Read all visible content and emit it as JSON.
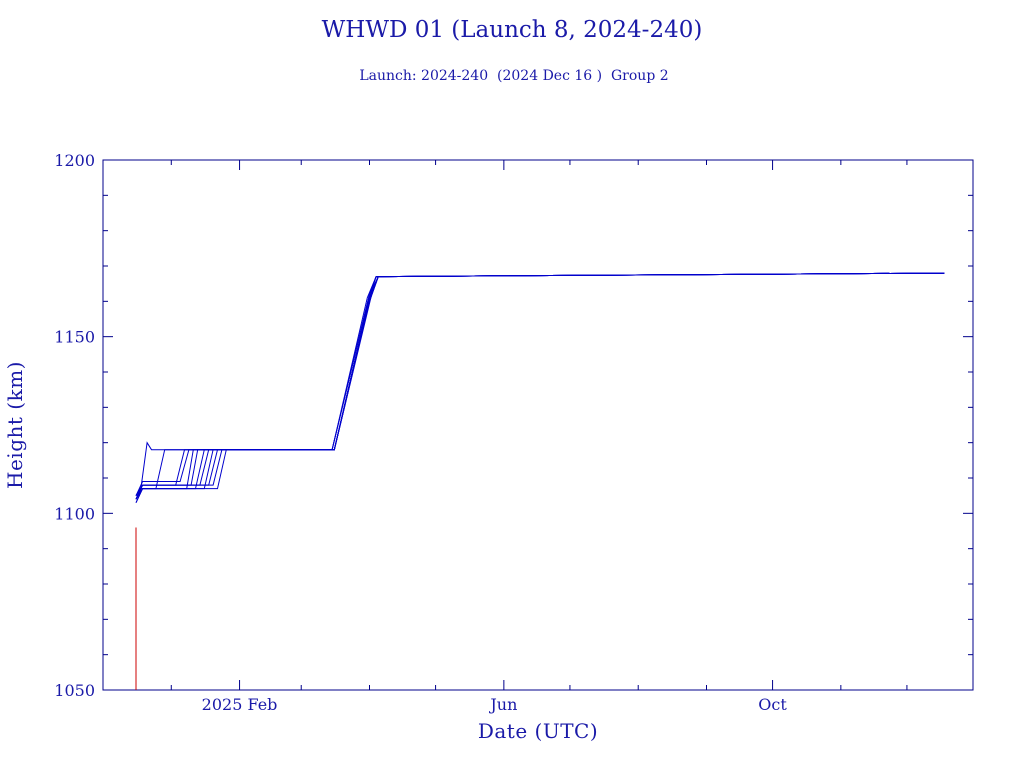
{
  "colors": {
    "axis": "#00008b",
    "text": "#1a1aa8",
    "series": "#0000cc",
    "launch": "#cc0000"
  },
  "chart_data": {
    "type": "line",
    "title": "WHWD 01 (Launch 8, 2024-240)",
    "subtitle": "Launch: 2024-240  (2024 Dec 16 )  Group 2",
    "xlabel": "Date (UTC)",
    "ylabel": "Height (km)",
    "x_axis": {
      "type": "date",
      "range": [
        "2024-12-01",
        "2025-12-31"
      ],
      "tick_labels": [
        {
          "date": "2025-02-01",
          "label": "2025 Feb"
        },
        {
          "date": "2025-06-01",
          "label": "Jun"
        },
        {
          "date": "2025-10-01",
          "label": "Oct"
        }
      ],
      "minor_tick_dates": [
        "2025-01-01",
        "2025-03-01",
        "2025-04-01",
        "2025-05-01",
        "2025-07-01",
        "2025-08-01",
        "2025-09-01",
        "2025-11-01",
        "2025-12-01"
      ]
    },
    "y_axis": {
      "range": [
        1050,
        1200
      ],
      "tick_labels": [
        1050,
        1100,
        1150,
        1200
      ],
      "minor_step": 10
    },
    "grid": false,
    "launch_segment": {
      "points": [
        [
          "2024-12-16",
          1050
        ],
        [
          "2024-12-16",
          1096
        ]
      ]
    },
    "series": [
      {
        "points": [
          [
            "2024-12-16",
            1104
          ],
          [
            "2024-12-18",
            1106
          ],
          [
            "2024-12-21",
            1120
          ],
          [
            "2024-12-22",
            1119
          ],
          [
            "2024-12-23",
            1118
          ],
          [
            "2025-03-16",
            1118
          ],
          [
            "2025-04-01",
            1160
          ],
          [
            "2025-04-05",
            1167
          ],
          [
            "2025-12-18",
            1168
          ]
        ]
      },
      {
        "points": [
          [
            "2024-12-16",
            1104
          ],
          [
            "2024-12-18",
            1107
          ],
          [
            "2024-12-25",
            1107
          ],
          [
            "2024-12-29",
            1118
          ],
          [
            "2025-03-16",
            1118
          ],
          [
            "2025-04-01",
            1161
          ],
          [
            "2025-04-04",
            1167
          ],
          [
            "2025-12-18",
            1168
          ]
        ]
      },
      {
        "points": [
          [
            "2024-12-16",
            1105
          ],
          [
            "2024-12-19",
            1108
          ],
          [
            "2025-01-03",
            1108
          ],
          [
            "2025-01-07",
            1118
          ],
          [
            "2025-03-15",
            1118
          ],
          [
            "2025-03-31",
            1161
          ],
          [
            "2025-04-04",
            1167
          ],
          [
            "2025-12-18",
            1168
          ]
        ]
      },
      {
        "points": [
          [
            "2024-12-16",
            1105
          ],
          [
            "2024-12-19",
            1109
          ],
          [
            "2025-01-05",
            1109
          ],
          [
            "2025-01-09",
            1118
          ],
          [
            "2025-03-15",
            1118
          ],
          [
            "2025-04-01",
            1162
          ],
          [
            "2025-04-04",
            1167
          ],
          [
            "2025-12-18",
            1168
          ]
        ]
      },
      {
        "points": [
          [
            "2024-12-16",
            1103
          ],
          [
            "2024-12-19",
            1107
          ],
          [
            "2025-01-08",
            1107
          ],
          [
            "2025-01-11",
            1118
          ],
          [
            "2025-03-16",
            1118
          ],
          [
            "2025-04-01",
            1160
          ],
          [
            "2025-04-05",
            1167
          ],
          [
            "2025-12-18",
            1168
          ]
        ]
      },
      {
        "points": [
          [
            "2024-12-16",
            1104
          ],
          [
            "2024-12-19",
            1108
          ],
          [
            "2025-01-10",
            1108
          ],
          [
            "2025-01-13",
            1118
          ],
          [
            "2025-03-16",
            1118
          ],
          [
            "2025-04-02",
            1163
          ],
          [
            "2025-04-05",
            1167
          ],
          [
            "2025-12-18",
            1168
          ]
        ]
      },
      {
        "points": [
          [
            "2024-12-16",
            1104
          ],
          [
            "2024-12-19",
            1107
          ],
          [
            "2025-01-12",
            1107
          ],
          [
            "2025-01-16",
            1118
          ],
          [
            "2025-03-16",
            1118
          ],
          [
            "2025-04-01",
            1161
          ],
          [
            "2025-04-05",
            1167
          ],
          [
            "2025-12-18",
            1168
          ]
        ]
      },
      {
        "points": [
          [
            "2024-12-16",
            1105
          ],
          [
            "2024-12-19",
            1108
          ],
          [
            "2025-01-14",
            1108
          ],
          [
            "2025-01-18",
            1118
          ],
          [
            "2025-03-15",
            1118
          ],
          [
            "2025-04-01",
            1162
          ],
          [
            "2025-04-04",
            1167
          ],
          [
            "2025-12-18",
            1168
          ]
        ]
      },
      {
        "points": [
          [
            "2024-12-16",
            1103
          ],
          [
            "2024-12-19",
            1107
          ],
          [
            "2025-01-16",
            1107
          ],
          [
            "2025-01-20",
            1118
          ],
          [
            "2025-03-16",
            1118
          ],
          [
            "2025-04-02",
            1162
          ],
          [
            "2025-04-05",
            1167
          ],
          [
            "2025-12-18",
            1168
          ]
        ]
      },
      {
        "points": [
          [
            "2024-12-16",
            1104
          ],
          [
            "2024-12-19",
            1108
          ],
          [
            "2025-01-18",
            1108
          ],
          [
            "2025-01-22",
            1118
          ],
          [
            "2025-03-16",
            1118
          ],
          [
            "2025-04-01",
            1161
          ],
          [
            "2025-04-05",
            1167
          ],
          [
            "2025-12-18",
            1168
          ]
        ]
      },
      {
        "points": [
          [
            "2024-12-16",
            1105
          ],
          [
            "2024-12-19",
            1108
          ],
          [
            "2025-01-20",
            1108
          ],
          [
            "2025-01-24",
            1118
          ],
          [
            "2025-03-16",
            1118
          ],
          [
            "2025-04-02",
            1163
          ],
          [
            "2025-04-05",
            1167
          ],
          [
            "2025-12-18",
            1168
          ]
        ]
      },
      {
        "points": [
          [
            "2024-12-16",
            1104
          ],
          [
            "2024-12-19",
            1107
          ],
          [
            "2025-01-22",
            1107
          ],
          [
            "2025-01-26",
            1118
          ],
          [
            "2025-03-16",
            1118
          ],
          [
            "2025-04-01",
            1161
          ],
          [
            "2025-04-05",
            1167
          ],
          [
            "2025-12-18",
            1168
          ]
        ]
      }
    ]
  }
}
